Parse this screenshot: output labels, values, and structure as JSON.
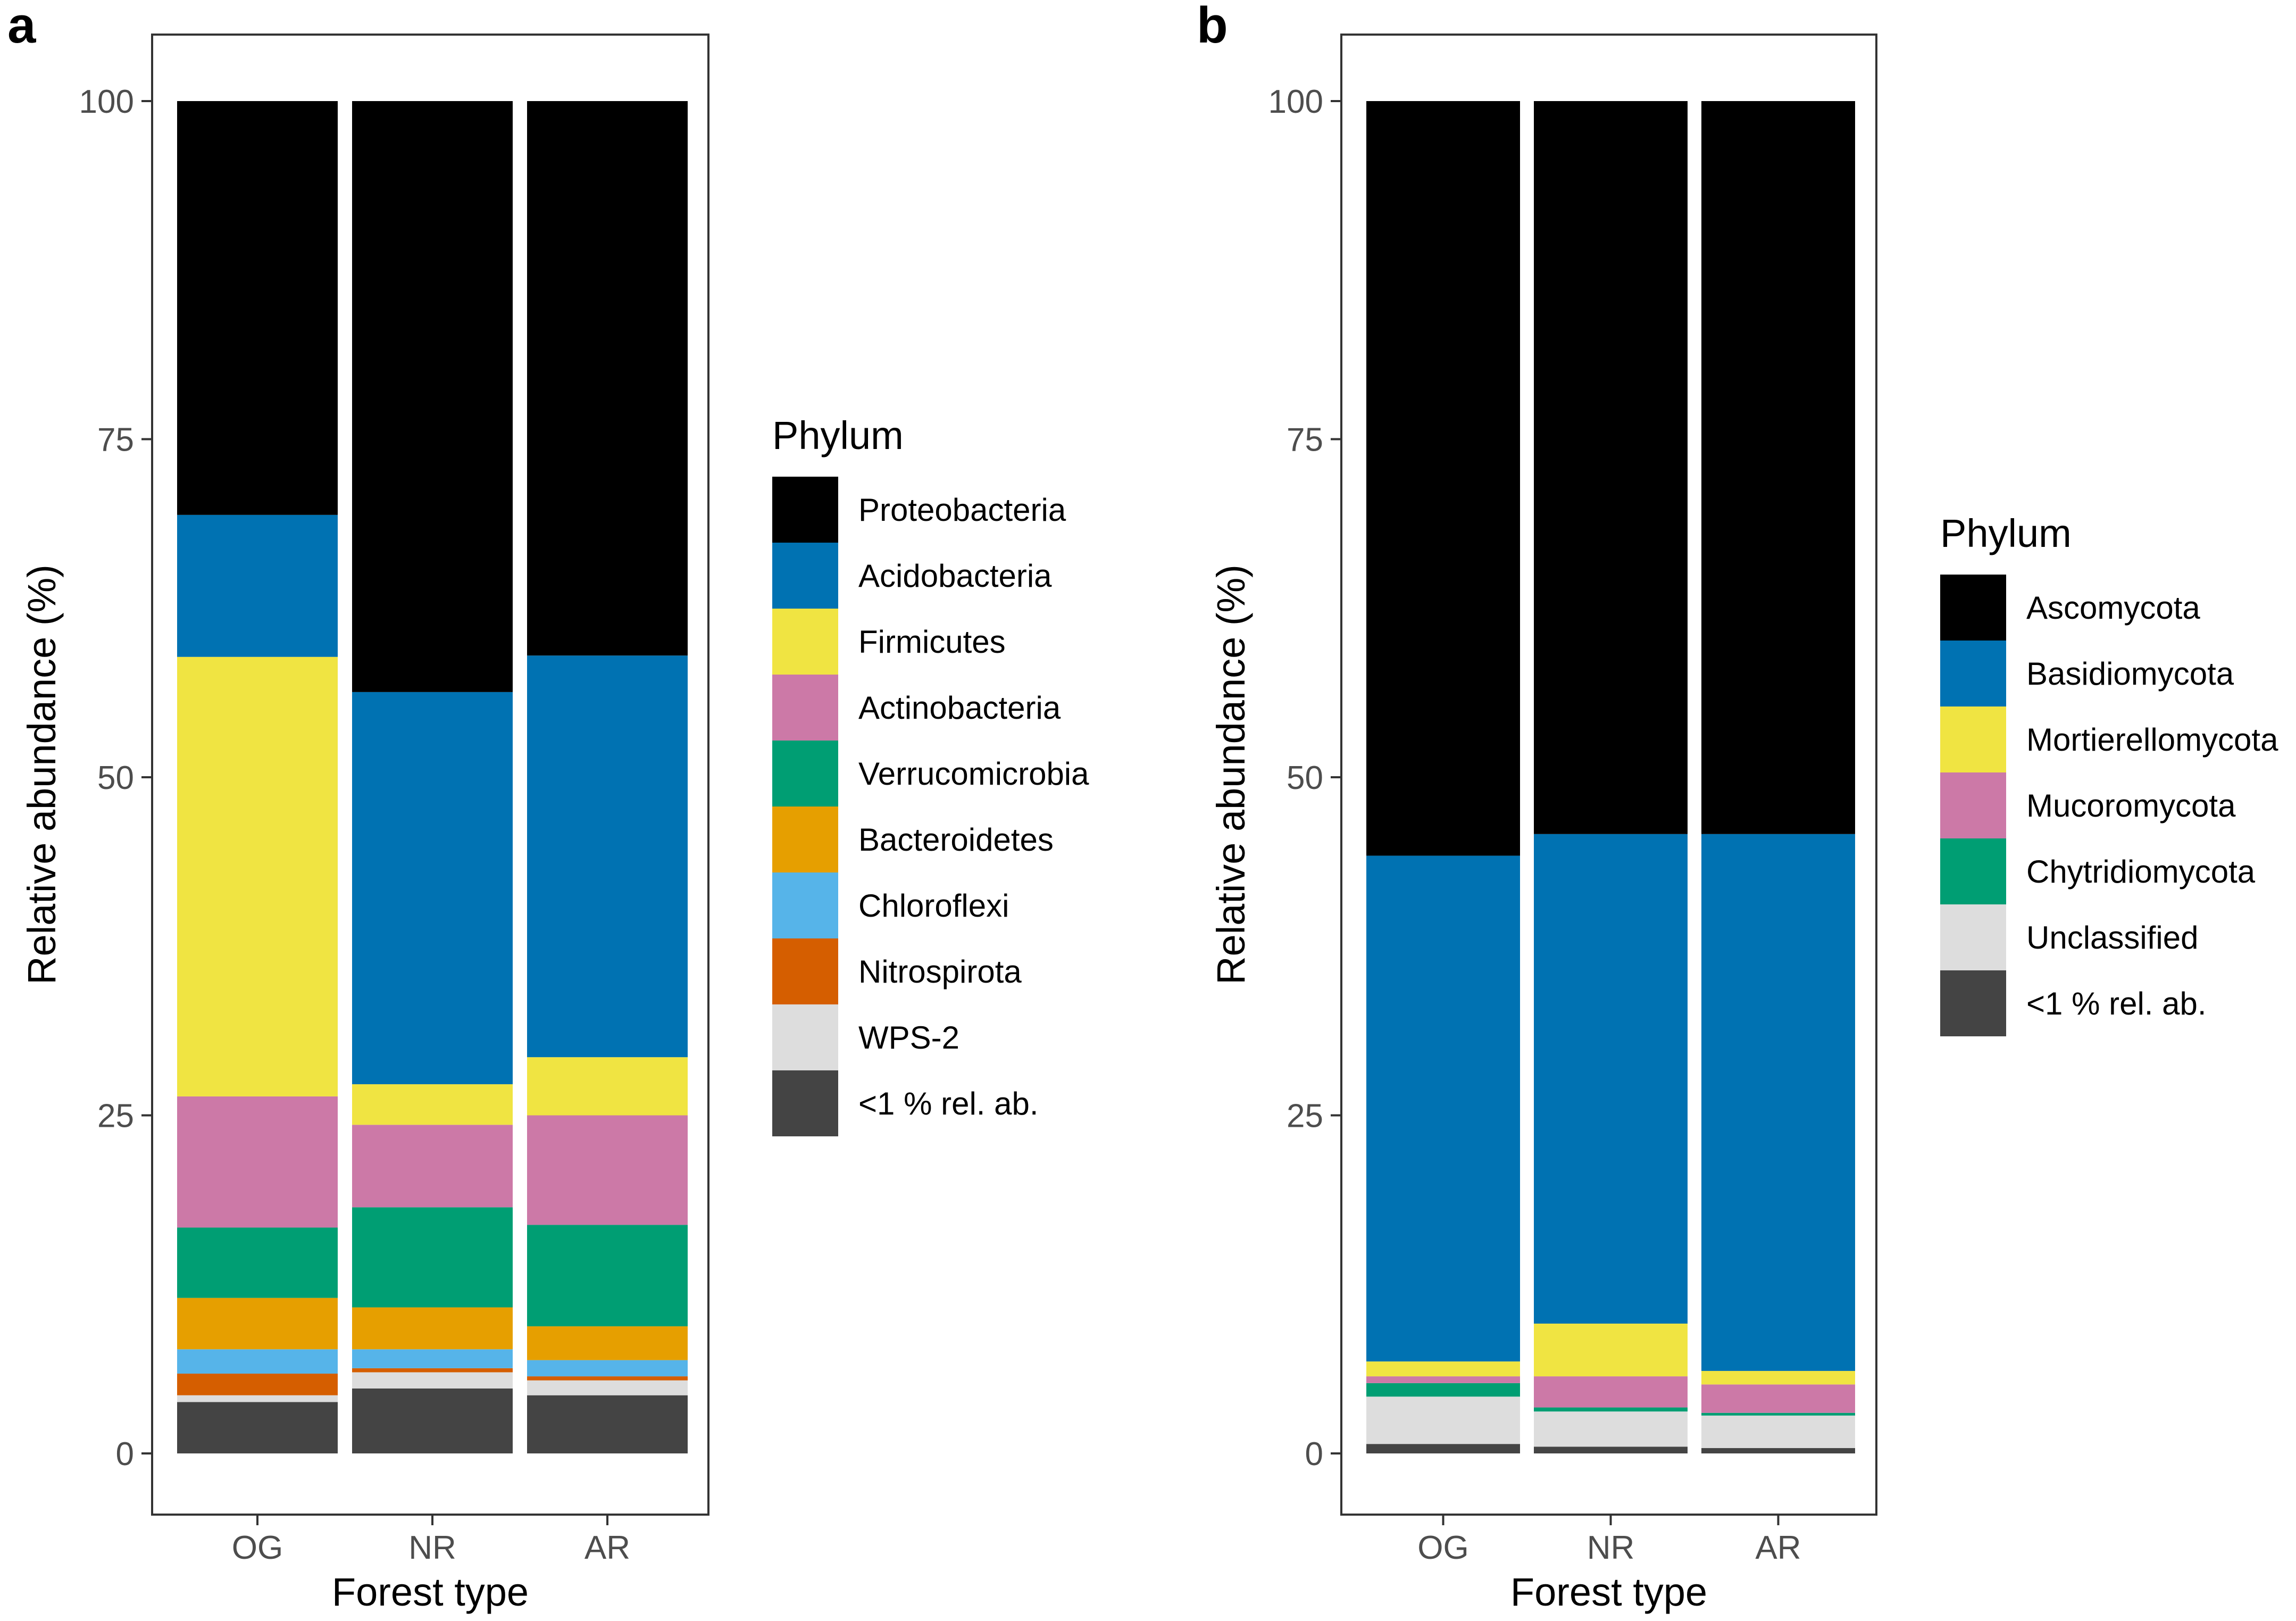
{
  "chart_data": [
    {
      "type": "bar",
      "stacked": true,
      "panel_label": "a",
      "xlabel": "Forest type",
      "ylabel": "Relative abundance (%)",
      "ylim": [
        0,
        100
      ],
      "yticks": [
        0,
        25,
        50,
        75,
        100
      ],
      "categories": [
        "OG",
        "NR",
        "AR"
      ],
      "legend_title": "Phylum",
      "series": [
        {
          "name": "<1 % rel. ab.",
          "color": "#444444",
          "values": [
            3.8,
            4.8,
            4.3
          ]
        },
        {
          "name": "WPS-2",
          "color": "#dddddd",
          "values": [
            0.5,
            1.2,
            1.1
          ]
        },
        {
          "name": "Nitrospirota",
          "color": "#d55e00",
          "values": [
            1.6,
            0.3,
            0.3
          ]
        },
        {
          "name": "Chloroflexi",
          "color": "#56b4e9",
          "values": [
            1.8,
            1.4,
            1.2
          ]
        },
        {
          "name": "Bacteroidetes",
          "color": "#e69f00",
          "values": [
            3.8,
            3.1,
            2.5
          ]
        },
        {
          "name": "Verrucomicrobia",
          "color": "#009e73",
          "values": [
            5.2,
            7.4,
            7.5
          ]
        },
        {
          "name": "Actinobacteria",
          "color": "#cc79a7",
          "values": [
            9.7,
            6.1,
            8.1
          ]
        },
        {
          "name": "Firmicutes",
          "color": "#f0e442",
          "values": [
            32.5,
            3.0,
            4.3
          ]
        },
        {
          "name": "Acidobacteria",
          "color": "#0072b2",
          "values": [
            10.5,
            29.0,
            29.7
          ]
        },
        {
          "name": "Proteobacteria",
          "color": "#000000",
          "values": [
            30.6,
            43.7,
            41.0
          ]
        }
      ],
      "legend_order": [
        "Proteobacteria",
        "Acidobacteria",
        "Firmicutes",
        "Actinobacteria",
        "Verrucomicrobia",
        "Bacteroidetes",
        "Chloroflexi",
        "Nitrospirota",
        "WPS-2",
        "<1 % rel. ab."
      ]
    },
    {
      "type": "bar",
      "stacked": true,
      "panel_label": "b",
      "xlabel": "Forest type",
      "ylabel": "Relative abundance (%)",
      "ylim": [
        0,
        100
      ],
      "yticks": [
        0,
        25,
        50,
        75,
        100
      ],
      "categories": [
        "OG",
        "NR",
        "AR"
      ],
      "legend_title": "Phylum",
      "series": [
        {
          "name": "<1 % rel. ab.",
          "color": "#444444",
          "values": [
            0.7,
            0.5,
            0.4
          ]
        },
        {
          "name": "Unclassified",
          "color": "#dddddd",
          "values": [
            3.5,
            2.6,
            2.4
          ]
        },
        {
          "name": "Chytridiomycota",
          "color": "#009e73",
          "values": [
            1.0,
            0.3,
            0.2
          ]
        },
        {
          "name": "Mucoromycota",
          "color": "#cc79a7",
          "values": [
            0.5,
            2.3,
            2.1
          ]
        },
        {
          "name": "Mortierellomycota",
          "color": "#f0e442",
          "values": [
            1.1,
            3.9,
            1.0
          ]
        },
        {
          "name": "Basidiomycota",
          "color": "#0072b2",
          "values": [
            37.4,
            36.2,
            39.7
          ]
        },
        {
          "name": "Ascomycota",
          "color": "#000000",
          "values": [
            55.8,
            54.2,
            54.2
          ]
        }
      ],
      "legend_order": [
        "Ascomycota",
        "Basidiomycota",
        "Mortierellomycota",
        "Mucoromycota",
        "Chytridiomycota",
        "Unclassified",
        "<1 % rel. ab."
      ]
    }
  ]
}
